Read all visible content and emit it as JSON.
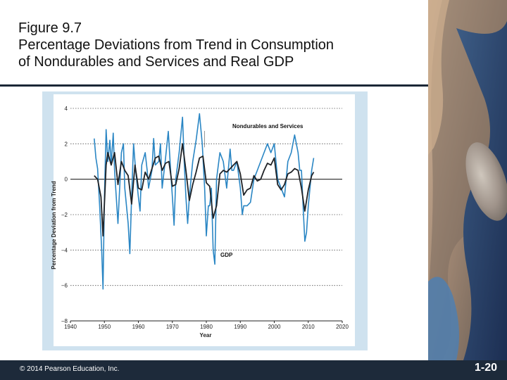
{
  "slide": {
    "title_lines": [
      "Figure 9.7",
      "Percentage Deviations from Trend in Consumption",
      "of Nondurables and Services and Real GDP"
    ],
    "copyright": "© 2014 Pearson Education, Inc.",
    "page_number": "1-20"
  },
  "colors": {
    "gdp": "#1f2226",
    "nondurables": "#2a86c4",
    "footer": "#1d2a3a",
    "frame": "#cfe2ef"
  },
  "chart_data": {
    "type": "line",
    "title": "",
    "xlabel": "Year",
    "ylabel": "Percentage Deviation from Trend",
    "xlim": [
      1940,
      2020
    ],
    "ylim": [
      -8,
      4
    ],
    "x_ticks": [
      "1940",
      "1950",
      "1960",
      "1970",
      "1980",
      "1990",
      "2000",
      "2010",
      "2020"
    ],
    "y_ticks": [
      "4",
      "2",
      "0",
      "−2",
      "−4",
      "−6",
      "−8"
    ],
    "grid": "horizontal dotted",
    "series": [
      {
        "name": "Nondurables and Services",
        "x": [
          1947,
          1947.5,
          1948,
          1948.6,
          1949.2,
          1949.6,
          1950,
          1950.5,
          1951,
          1951.6,
          1952,
          1952.6,
          1953,
          1953.5,
          1954,
          1955,
          1955.6,
          1956,
          1957,
          1957.5,
          1958,
          1958.6,
          1959.2,
          1960,
          1960.5,
          1961,
          1962,
          1962.6,
          1963,
          1964,
          1964.5,
          1965,
          1966,
          1966.5,
          1967,
          1968,
          1968.8,
          1969.5,
          1970,
          1970.5,
          1971,
          1972,
          1973,
          1973.5,
          1974,
          1974.5,
          1975,
          1976,
          1977,
          1978,
          1978.8,
          1979.5,
          1980,
          1980.6,
          1981,
          1981.5,
          1982,
          1982.5,
          1983,
          1984,
          1985,
          1986,
          1987,
          1987.5,
          1988,
          1989,
          1990,
          1990.6,
          1991,
          1992,
          1993,
          1994,
          1995,
          1996,
          1997,
          1998,
          1999,
          2000,
          2001,
          2002,
          2003,
          2004,
          2005,
          2006,
          2007,
          2007.5,
          2008,
          2008.6,
          2009,
          2009.5,
          2010,
          2011,
          2011.6
        ],
        "values": [
          2.3,
          1.2,
          0.6,
          -1.5,
          -4.0,
          -6.2,
          -1.0,
          2.8,
          1.0,
          2.2,
          0.8,
          2.6,
          0.5,
          -1.0,
          -2.5,
          1.5,
          2.0,
          -0.5,
          -2.5,
          -4.2,
          -1.0,
          2.0,
          0.5,
          -1.0,
          -1.8,
          0.8,
          1.5,
          0.5,
          -0.5,
          0.5,
          2.3,
          0.8,
          1.0,
          2.0,
          -0.5,
          1.2,
          2.7,
          0.5,
          -1.0,
          -2.6,
          0.0,
          1.5,
          3.5,
          1.0,
          -1.0,
          -2.5,
          -1.0,
          1.0,
          2.2,
          3.7,
          2.0,
          -0.5,
          -3.2,
          -1.5,
          -1.5,
          -0.5,
          -4.0,
          -4.8,
          0.0,
          1.5,
          1.0,
          -0.5,
          1.7,
          0.5,
          0.5,
          1.0,
          -0.5,
          -2.0,
          -1.5,
          -1.5,
          -1.3,
          0.0,
          0.5,
          1.0,
          1.5,
          2.0,
          1.5,
          2.0,
          0.0,
          -0.5,
          -1.0,
          1.0,
          1.5,
          2.5,
          1.5,
          0.5,
          0.5,
          -2.0,
          -3.5,
          -3.0,
          -1.5,
          0.5,
          1.2
        ]
      },
      {
        "name": "GDP",
        "x": [
          1947,
          1948,
          1949,
          1949.6,
          1950.5,
          1951,
          1952,
          1953,
          1954,
          1955,
          1956,
          1957,
          1958,
          1959,
          1960,
          1961,
          1962,
          1963,
          1964,
          1965,
          1966,
          1967,
          1968,
          1969,
          1970,
          1971,
          1972,
          1973,
          1974,
          1975,
          1976,
          1977,
          1978,
          1979,
          1980,
          1981,
          1982,
          1983,
          1984,
          1985,
          1986,
          1987,
          1988,
          1989,
          1990,
          1991,
          1992,
          1993,
          1994,
          1995,
          1996,
          1997,
          1998,
          1999,
          2000,
          2001,
          2002,
          2003,
          2004,
          2005,
          2006,
          2007,
          2008,
          2009,
          2010,
          2011,
          2011.6
        ],
        "values": [
          0.2,
          0.0,
          -1.0,
          -3.2,
          0.8,
          1.5,
          0.8,
          1.5,
          -0.3,
          1.0,
          0.5,
          0.2,
          -1.4,
          0.8,
          -0.5,
          -0.6,
          0.4,
          0.0,
          0.6,
          1.2,
          1.3,
          0.5,
          0.9,
          1.0,
          -0.4,
          -0.3,
          0.6,
          2.0,
          0.5,
          -1.2,
          -0.3,
          0.4,
          1.2,
          1.3,
          -0.2,
          -0.4,
          -2.2,
          -1.5,
          0.3,
          0.5,
          0.4,
          0.6,
          0.8,
          1.0,
          0.3,
          -0.9,
          -0.6,
          -0.5,
          0.2,
          -0.1,
          0.0,
          0.5,
          0.9,
          0.8,
          1.2,
          -0.3,
          -0.6,
          -0.3,
          0.3,
          0.4,
          0.6,
          0.5,
          -0.5,
          -1.8,
          -0.6,
          0.2,
          0.4
        ]
      }
    ],
    "annotations": [
      {
        "text": "Nondurables and Services",
        "series": 0
      },
      {
        "text": "GDP",
        "series": 1
      }
    ]
  }
}
